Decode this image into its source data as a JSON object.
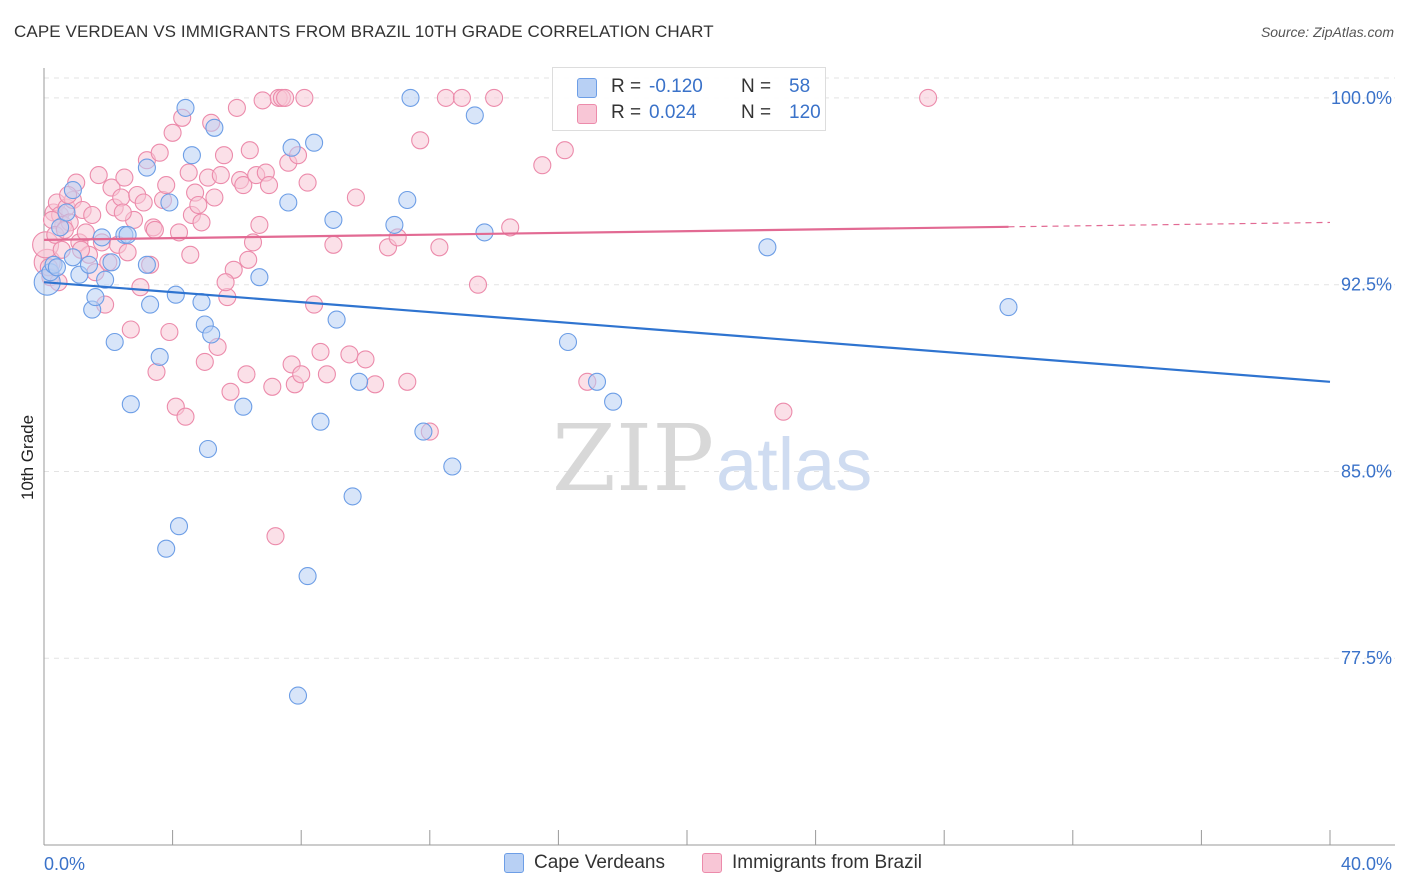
{
  "header": {
    "title": "CAPE VERDEAN VS IMMIGRANTS FROM BRAZIL 10TH GRADE CORRELATION CHART",
    "source": "Source: ZipAtlas.com"
  },
  "watermark": {
    "part1": "ZIP",
    "part2": "atlas"
  },
  "legend": {
    "r_label": "R =",
    "n_label": "N =",
    "series": [
      {
        "name": "Cape Verdeans",
        "r": "-0.120",
        "n": "58",
        "fill": "#b8d0f4",
        "stroke": "#6d9ee6",
        "line": "#2f74d0"
      },
      {
        "name": "Immigrants from Brazil",
        "r": "0.024",
        "n": "120",
        "fill": "#f8c6d6",
        "stroke": "#ec8bab",
        "line": "#e26a93"
      }
    ]
  },
  "chart_data": {
    "type": "scatter",
    "title": "CAPE VERDEAN VS IMMIGRANTS FROM BRAZIL 10TH GRADE CORRELATION CHART",
    "xlabel": "",
    "ylabel": "10th Grade",
    "xlim": [
      0,
      40
    ],
    "ylim": [
      70,
      100.8
    ],
    "x_tick_labels": [
      "0.0%",
      "40.0%"
    ],
    "y_ticks": [
      77.5,
      85.0,
      92.5,
      100.0
    ],
    "y_tick_labels": [
      "77.5%",
      "85.0%",
      "92.5%",
      "100.0%"
    ],
    "grid": true,
    "series": [
      {
        "name": "Cape Verdeans",
        "r": -0.12,
        "n": 58,
        "trend": {
          "x": [
            0,
            40
          ],
          "y": [
            92.6,
            88.6
          ]
        },
        "points": [
          [
            0.1,
            92.6
          ],
          [
            0.2,
            93.0
          ],
          [
            0.3,
            93.3
          ],
          [
            0.4,
            93.2
          ],
          [
            0.5,
            94.8
          ],
          [
            0.7,
            95.4
          ],
          [
            0.9,
            96.3
          ],
          [
            1.1,
            92.9
          ],
          [
            0.9,
            93.6
          ],
          [
            1.4,
            93.3
          ],
          [
            1.5,
            91.5
          ],
          [
            1.6,
            92.0
          ],
          [
            1.8,
            94.4
          ],
          [
            1.9,
            92.7
          ],
          [
            2.1,
            93.4
          ],
          [
            2.2,
            90.2
          ],
          [
            2.5,
            94.5
          ],
          [
            2.6,
            94.5
          ],
          [
            2.7,
            87.7
          ],
          [
            3.2,
            93.3
          ],
          [
            3.2,
            97.2
          ],
          [
            3.3,
            91.7
          ],
          [
            3.6,
            89.6
          ],
          [
            3.8,
            81.9
          ],
          [
            3.9,
            95.8
          ],
          [
            4.1,
            92.1
          ],
          [
            4.2,
            82.8
          ],
          [
            4.4,
            99.6
          ],
          [
            4.6,
            97.7
          ],
          [
            4.9,
            91.8
          ],
          [
            5.0,
            90.9
          ],
          [
            5.1,
            85.9
          ],
          [
            5.2,
            90.5
          ],
          [
            5.3,
            98.8
          ],
          [
            6.2,
            87.6
          ],
          [
            6.7,
            92.8
          ],
          [
            7.6,
            95.8
          ],
          [
            7.7,
            98.0
          ],
          [
            7.9,
            76.0
          ],
          [
            8.2,
            80.8
          ],
          [
            8.4,
            98.2
          ],
          [
            8.6,
            87.0
          ],
          [
            9.0,
            95.1
          ],
          [
            9.1,
            91.1
          ],
          [
            9.6,
            84.0
          ],
          [
            9.8,
            88.6
          ],
          [
            10.9,
            94.9
          ],
          [
            11.3,
            95.9
          ],
          [
            11.4,
            100.0
          ],
          [
            11.8,
            86.6
          ],
          [
            12.7,
            85.2
          ],
          [
            13.4,
            99.3
          ],
          [
            13.7,
            94.6
          ],
          [
            16.3,
            90.2
          ],
          [
            17.2,
            88.6
          ],
          [
            17.7,
            87.8
          ],
          [
            22.5,
            94.0
          ],
          [
            30.0,
            91.6
          ]
        ]
      },
      {
        "name": "Immigrants from Brazil",
        "r": 0.024,
        "n": 120,
        "trend": {
          "x": [
            0,
            40
          ],
          "y": [
            94.3,
            95.0
          ]
        },
        "points": [
          [
            0.1,
            93.4
          ],
          [
            0.2,
            92.8
          ],
          [
            0.3,
            95.4
          ],
          [
            0.4,
            95.8
          ],
          [
            0.5,
            95.3
          ],
          [
            0.6,
            94.9
          ],
          [
            0.7,
            95.6
          ],
          [
            0.8,
            95.0
          ],
          [
            0.9,
            95.9
          ],
          [
            1.0,
            96.6
          ],
          [
            1.1,
            94.2
          ],
          [
            1.2,
            95.5
          ],
          [
            1.3,
            94.6
          ],
          [
            1.4,
            93.7
          ],
          [
            1.5,
            95.3
          ],
          [
            1.6,
            93.0
          ],
          [
            1.7,
            96.9
          ],
          [
            1.8,
            94.2
          ],
          [
            1.9,
            91.7
          ],
          [
            2.0,
            93.4
          ],
          [
            2.1,
            96.4
          ],
          [
            2.2,
            95.6
          ],
          [
            2.3,
            94.1
          ],
          [
            2.4,
            96.0
          ],
          [
            2.5,
            96.8
          ],
          [
            2.6,
            93.8
          ],
          [
            2.7,
            90.7
          ],
          [
            2.8,
            95.1
          ],
          [
            2.9,
            96.1
          ],
          [
            3.0,
            92.4
          ],
          [
            3.1,
            95.8
          ],
          [
            3.2,
            97.5
          ],
          [
            3.3,
            93.3
          ],
          [
            3.4,
            94.8
          ],
          [
            3.5,
            89.0
          ],
          [
            3.6,
            97.8
          ],
          [
            3.7,
            95.9
          ],
          [
            3.8,
            96.5
          ],
          [
            3.9,
            90.6
          ],
          [
            4.0,
            98.6
          ],
          [
            4.1,
            87.6
          ],
          [
            4.2,
            94.6
          ],
          [
            4.3,
            99.2
          ],
          [
            4.4,
            87.2
          ],
          [
            4.5,
            97.0
          ],
          [
            4.6,
            95.3
          ],
          [
            4.7,
            96.2
          ],
          [
            4.8,
            95.7
          ],
          [
            4.9,
            95.0
          ],
          [
            5.0,
            89.4
          ],
          [
            5.1,
            96.8
          ],
          [
            5.2,
            99.0
          ],
          [
            5.3,
            96.0
          ],
          [
            5.4,
            90.0
          ],
          [
            5.5,
            96.9
          ],
          [
            5.6,
            97.7
          ],
          [
            5.7,
            92.0
          ],
          [
            5.8,
            88.2
          ],
          [
            5.9,
            93.1
          ],
          [
            6.0,
            99.6
          ],
          [
            6.1,
            96.7
          ],
          [
            6.2,
            96.5
          ],
          [
            6.3,
            88.9
          ],
          [
            6.4,
            97.9
          ],
          [
            6.5,
            94.2
          ],
          [
            6.6,
            96.9
          ],
          [
            6.7,
            94.9
          ],
          [
            6.8,
            99.9
          ],
          [
            6.9,
            97.0
          ],
          [
            7.0,
            96.5
          ],
          [
            7.1,
            88.4
          ],
          [
            7.2,
            82.4
          ],
          [
            7.3,
            100.0
          ],
          [
            7.4,
            100.0
          ],
          [
            7.5,
            100.0
          ],
          [
            7.6,
            97.4
          ],
          [
            7.7,
            89.3
          ],
          [
            7.8,
            88.5
          ],
          [
            7.9,
            97.7
          ],
          [
            8.0,
            88.9
          ],
          [
            8.1,
            100.0
          ],
          [
            8.2,
            96.6
          ],
          [
            8.4,
            91.7
          ],
          [
            8.6,
            89.8
          ],
          [
            8.8,
            88.9
          ],
          [
            9.0,
            94.1
          ],
          [
            9.5,
            89.7
          ],
          [
            9.7,
            96.0
          ],
          [
            10.0,
            89.5
          ],
          [
            10.3,
            88.5
          ],
          [
            10.7,
            94.0
          ],
          [
            11.0,
            94.4
          ],
          [
            11.3,
            88.6
          ],
          [
            11.7,
            98.3
          ],
          [
            12.0,
            86.6
          ],
          [
            12.3,
            94.0
          ],
          [
            12.5,
            100.0
          ],
          [
            13.0,
            100.0
          ],
          [
            13.5,
            92.5
          ],
          [
            14.0,
            100.0
          ],
          [
            14.5,
            94.8
          ],
          [
            15.5,
            97.3
          ],
          [
            16.2,
            97.9
          ],
          [
            16.9,
            88.6
          ],
          [
            0.05,
            94.1
          ],
          [
            0.15,
            93.2
          ],
          [
            0.25,
            95.1
          ],
          [
            0.35,
            94.5
          ],
          [
            0.45,
            92.6
          ],
          [
            0.55,
            93.9
          ],
          [
            0.65,
            94.7
          ],
          [
            0.75,
            96.1
          ],
          [
            23.0,
            87.4
          ],
          [
            27.5,
            100.0
          ],
          [
            1.15,
            93.9
          ],
          [
            2.45,
            95.4
          ],
          [
            3.45,
            94.7
          ],
          [
            4.55,
            93.7
          ],
          [
            6.35,
            93.5
          ],
          [
            5.65,
            92.6
          ]
        ]
      }
    ]
  }
}
